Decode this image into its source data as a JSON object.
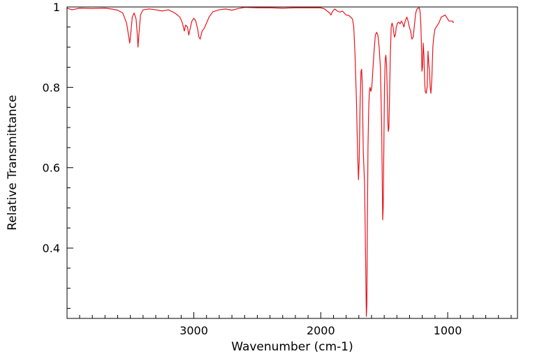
{
  "chart_data": {
    "type": "line",
    "title": "",
    "xlabel": "Wavenumber (cm-1)",
    "ylabel": "Relative Transmittance",
    "x_reversed": true,
    "xlim": [
      3999,
      450
    ],
    "ylim": [
      0.225,
      1.0
    ],
    "x_ticks": [
      3000,
      2000,
      1000
    ],
    "x_tick_labels": [
      "3000",
      "2000",
      "1000"
    ],
    "y_ticks": [
      0.4,
      0.6,
      0.8,
      1.0
    ],
    "y_tick_labels": [
      "0.4",
      "0.6",
      "0.8",
      "1"
    ],
    "grid": false,
    "legend": "none",
    "series": [
      {
        "color": "#e8141c",
        "points": [
          [
            3999,
            0.997
          ],
          [
            3960,
            0.993
          ],
          [
            3900,
            0.997
          ],
          [
            3800,
            0.996
          ],
          [
            3700,
            0.997
          ],
          [
            3650,
            0.995
          ],
          [
            3600,
            0.992
          ],
          [
            3560,
            0.985
          ],
          [
            3530,
            0.96
          ],
          [
            3515,
            0.93
          ],
          [
            3505,
            0.91
          ],
          [
            3495,
            0.94
          ],
          [
            3485,
            0.975
          ],
          [
            3470,
            0.985
          ],
          [
            3455,
            0.97
          ],
          [
            3445,
            0.93
          ],
          [
            3440,
            0.9
          ],
          [
            3432,
            0.935
          ],
          [
            3420,
            0.98
          ],
          [
            3400,
            0.993
          ],
          [
            3350,
            0.995
          ],
          [
            3300,
            0.993
          ],
          [
            3250,
            0.99
          ],
          [
            3200,
            0.993
          ],
          [
            3150,
            0.985
          ],
          [
            3110,
            0.975
          ],
          [
            3090,
            0.96
          ],
          [
            3075,
            0.94
          ],
          [
            3065,
            0.955
          ],
          [
            3050,
            0.95
          ],
          [
            3040,
            0.93
          ],
          [
            3030,
            0.945
          ],
          [
            3015,
            0.965
          ],
          [
            3000,
            0.972
          ],
          [
            2985,
            0.965
          ],
          [
            2970,
            0.945
          ],
          [
            2960,
            0.925
          ],
          [
            2950,
            0.92
          ],
          [
            2935,
            0.94
          ],
          [
            2920,
            0.946
          ],
          [
            2900,
            0.96
          ],
          [
            2880,
            0.975
          ],
          [
            2850,
            0.988
          ],
          [
            2800,
            0.993
          ],
          [
            2750,
            0.995
          ],
          [
            2700,
            0.992
          ],
          [
            2650,
            0.996
          ],
          [
            2600,
            0.999
          ],
          [
            2500,
            0.998
          ],
          [
            2400,
            0.998
          ],
          [
            2300,
            0.997
          ],
          [
            2200,
            0.998
          ],
          [
            2100,
            0.998
          ],
          [
            2000,
            0.998
          ],
          [
            1970,
            0.995
          ],
          [
            1950,
            0.99
          ],
          [
            1930,
            0.985
          ],
          [
            1920,
            0.98
          ],
          [
            1905,
            0.99
          ],
          [
            1890,
            0.995
          ],
          [
            1870,
            0.99
          ],
          [
            1850,
            0.987
          ],
          [
            1830,
            0.99
          ],
          [
            1815,
            0.985
          ],
          [
            1800,
            0.98
          ],
          [
            1780,
            0.979
          ],
          [
            1765,
            0.975
          ],
          [
            1750,
            0.97
          ],
          [
            1740,
            0.95
          ],
          [
            1730,
            0.88
          ],
          [
            1720,
            0.78
          ],
          [
            1710,
            0.64
          ],
          [
            1703,
            0.57
          ],
          [
            1697,
            0.62
          ],
          [
            1690,
            0.76
          ],
          [
            1683,
            0.84
          ],
          [
            1678,
            0.845
          ],
          [
            1672,
            0.8
          ],
          [
            1668,
            0.7
          ],
          [
            1665,
            0.64
          ],
          [
            1660,
            0.6
          ],
          [
            1655,
            0.56
          ],
          [
            1650,
            0.45
          ],
          [
            1645,
            0.33
          ],
          [
            1641,
            0.23
          ],
          [
            1637,
            0.26
          ],
          [
            1633,
            0.45
          ],
          [
            1628,
            0.65
          ],
          [
            1622,
            0.75
          ],
          [
            1617,
            0.79
          ],
          [
            1612,
            0.8
          ],
          [
            1605,
            0.79
          ],
          [
            1598,
            0.8
          ],
          [
            1590,
            0.84
          ],
          [
            1580,
            0.89
          ],
          [
            1570,
            0.93
          ],
          [
            1560,
            0.937
          ],
          [
            1550,
            0.93
          ],
          [
            1540,
            0.9
          ],
          [
            1530,
            0.85
          ],
          [
            1520,
            0.7
          ],
          [
            1515,
            0.55
          ],
          [
            1512,
            0.47
          ],
          [
            1508,
            0.5
          ],
          [
            1503,
            0.65
          ],
          [
            1498,
            0.8
          ],
          [
            1492,
            0.87
          ],
          [
            1487,
            0.88
          ],
          [
            1482,
            0.86
          ],
          [
            1477,
            0.8
          ],
          [
            1472,
            0.72
          ],
          [
            1468,
            0.69
          ],
          [
            1463,
            0.7
          ],
          [
            1458,
            0.78
          ],
          [
            1452,
            0.88
          ],
          [
            1445,
            0.95
          ],
          [
            1438,
            0.96
          ],
          [
            1430,
            0.95
          ],
          [
            1420,
            0.925
          ],
          [
            1412,
            0.93
          ],
          [
            1405,
            0.95
          ],
          [
            1395,
            0.96
          ],
          [
            1385,
            0.962
          ],
          [
            1375,
            0.958
          ],
          [
            1365,
            0.965
          ],
          [
            1355,
            0.96
          ],
          [
            1345,
            0.95
          ],
          [
            1335,
            0.965
          ],
          [
            1322,
            0.975
          ],
          [
            1312,
            0.965
          ],
          [
            1302,
            0.95
          ],
          [
            1292,
            0.94
          ],
          [
            1282,
            0.92
          ],
          [
            1272,
            0.925
          ],
          [
            1262,
            0.955
          ],
          [
            1252,
            0.985
          ],
          [
            1242,
            0.995
          ],
          [
            1232,
            0.997
          ],
          [
            1225,
            0.998
          ],
          [
            1218,
            0.99
          ],
          [
            1212,
            0.96
          ],
          [
            1208,
            0.92
          ],
          [
            1203,
            0.84
          ],
          [
            1198,
            0.85
          ],
          [
            1193,
            0.91
          ],
          [
            1187,
            0.88
          ],
          [
            1182,
            0.82
          ],
          [
            1177,
            0.79
          ],
          [
            1170,
            0.785
          ],
          [
            1162,
            0.8
          ],
          [
            1155,
            0.89
          ],
          [
            1149,
            0.86
          ],
          [
            1143,
            0.84
          ],
          [
            1138,
            0.8
          ],
          [
            1132,
            0.785
          ],
          [
            1125,
            0.82
          ],
          [
            1117,
            0.9
          ],
          [
            1108,
            0.93
          ],
          [
            1100,
            0.945
          ],
          [
            1090,
            0.95
          ],
          [
            1070,
            0.96
          ],
          [
            1050,
            0.975
          ],
          [
            1020,
            0.98
          ],
          [
            990,
            0.965
          ],
          [
            960,
            0.965
          ],
          [
            955,
            0.96
          ]
        ]
      }
    ]
  }
}
